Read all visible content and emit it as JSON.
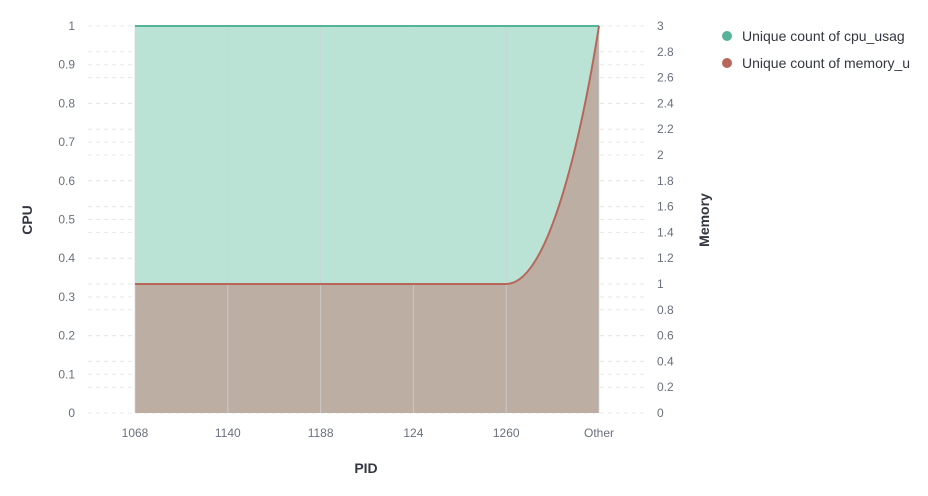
{
  "chart_data": {
    "type": "area",
    "categories": [
      "1068",
      "1140",
      "1188",
      "124",
      "1260",
      "Other"
    ],
    "series": [
      {
        "name": "Unique count of cpu_usage",
        "axis": "left",
        "values": [
          1,
          1,
          1,
          1,
          1,
          1
        ],
        "color": "#54b399",
        "fill": "#bae3d6"
      },
      {
        "name": "Unique count of memory_usage",
        "axis": "right",
        "values": [
          1,
          1,
          1,
          1,
          1,
          3
        ],
        "color": "#b9665a",
        "fill": "#bcaea3"
      }
    ],
    "legend_labels": [
      "Unique count of cpu_usag",
      "Unique count of memory_u"
    ],
    "xlabel": "PID",
    "ylabel_left": "CPU",
    "ylabel_right": "Memory",
    "ylim_left": [
      0,
      1
    ],
    "ylim_right": [
      0,
      3
    ],
    "yticks_left": [
      "0",
      "0.1",
      "0.2",
      "0.3",
      "0.4",
      "0.5",
      "0.6",
      "0.7",
      "0.8",
      "0.9",
      "1"
    ],
    "yticks_right": [
      "0",
      "0.2",
      "0.4",
      "0.6",
      "0.8",
      "1",
      "1.2",
      "1.4",
      "1.6",
      "1.8",
      "2",
      "2.2",
      "2.4",
      "2.6",
      "2.8",
      "3"
    ],
    "legend_position": "top-right",
    "grid": true
  }
}
